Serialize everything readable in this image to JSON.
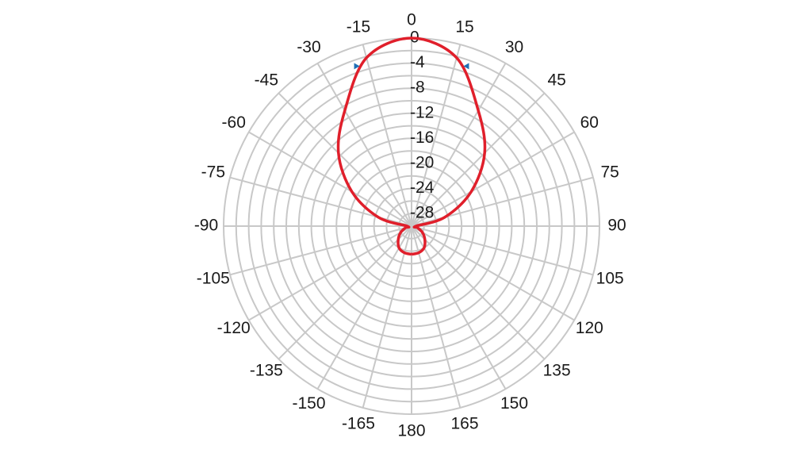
{
  "chart_data": {
    "type": "polar",
    "theta": [
      -180,
      -165,
      -150,
      -135,
      -120,
      -105,
      -90,
      -75,
      -60,
      -45,
      -30,
      -15,
      0,
      15,
      30,
      45,
      60,
      75,
      90,
      105,
      120,
      135,
      150,
      165,
      180
    ],
    "series": [
      {
        "color": "#e01f2b",
        "values": [
          -25.5,
          -25.6,
          -26,
          -27,
          -28,
          -29,
          -29.3,
          -24.5,
          -19,
          -13.5,
          -8.7,
          -2.2,
          0,
          -2.2,
          -8.7,
          -13.5,
          -19,
          -24.5,
          -29.3,
          -29,
          -28,
          -27,
          -26,
          -25.6,
          -25.5
        ]
      }
    ],
    "markers": {
      "color": "#1f6fb5",
      "theta": [
        -19,
        19
      ],
      "values": [
        -3,
        -3
      ]
    },
    "rlim": [
      -30,
      0
    ],
    "rticks": [
      0,
      -4,
      -8,
      -12,
      -16,
      -20,
      -24,
      -28
    ],
    "rgrid": [
      0,
      -2,
      -4,
      -6,
      -8,
      -10,
      -12,
      -14,
      -16,
      -18,
      -20,
      -22,
      -24,
      -26,
      -28
    ],
    "thetaticks": [
      0,
      15,
      30,
      45,
      60,
      75,
      90,
      105,
      120,
      135,
      150,
      165,
      180,
      -165,
      -150,
      -135,
      -120,
      -105,
      -90,
      -75,
      -60,
      -45,
      -30,
      -15
    ],
    "grid": true,
    "grid_color": "#c8c8c8"
  }
}
